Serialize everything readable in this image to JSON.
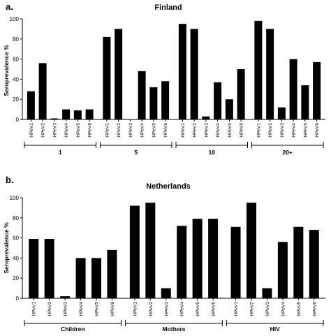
{
  "chart_data": [
    {
      "type": "bar",
      "panel_label": "a.",
      "title": "Finland",
      "ylabel": "Seroprevalence %",
      "xlabel": "",
      "ylim": [
        0,
        100
      ],
      "yticks": [
        0,
        20,
        40,
        60,
        80,
        100
      ],
      "categories": [
        "HPeV1",
        "HPeV2",
        "HPeV3",
        "HPeV4",
        "HPeV5",
        "HPeV6"
      ],
      "groups": [
        {
          "name": "1",
          "values": [
            28,
            56,
            1,
            10,
            9,
            10
          ]
        },
        {
          "name": "5",
          "values": [
            82,
            90,
            0,
            48,
            32,
            38
          ]
        },
        {
          "name": "10",
          "values": [
            95,
            90,
            3,
            37,
            20,
            50
          ]
        },
        {
          "name": "20+",
          "values": [
            98,
            90,
            12,
            60,
            34,
            57
          ]
        }
      ],
      "color": "#000000"
    },
    {
      "type": "bar",
      "panel_label": "b.",
      "title": "Netherlands",
      "ylabel": "Seroprevalence %",
      "xlabel": "",
      "ylim": [
        0,
        100
      ],
      "yticks": [
        0,
        20,
        40,
        60,
        80,
        100
      ],
      "categories": [
        "HPeV1",
        "HPeV2",
        "HPeV3",
        "HPeV4",
        "HPeV5",
        "HPeV6"
      ],
      "groups": [
        {
          "name": "Children",
          "values": [
            59,
            59,
            2,
            40,
            40,
            48
          ]
        },
        {
          "name": "Mothers",
          "values": [
            92,
            95,
            10,
            72,
            79,
            79
          ]
        },
        {
          "name": "HIV",
          "values": [
            71,
            95,
            10,
            56,
            71,
            68
          ]
        }
      ],
      "color": "#000000"
    }
  ]
}
